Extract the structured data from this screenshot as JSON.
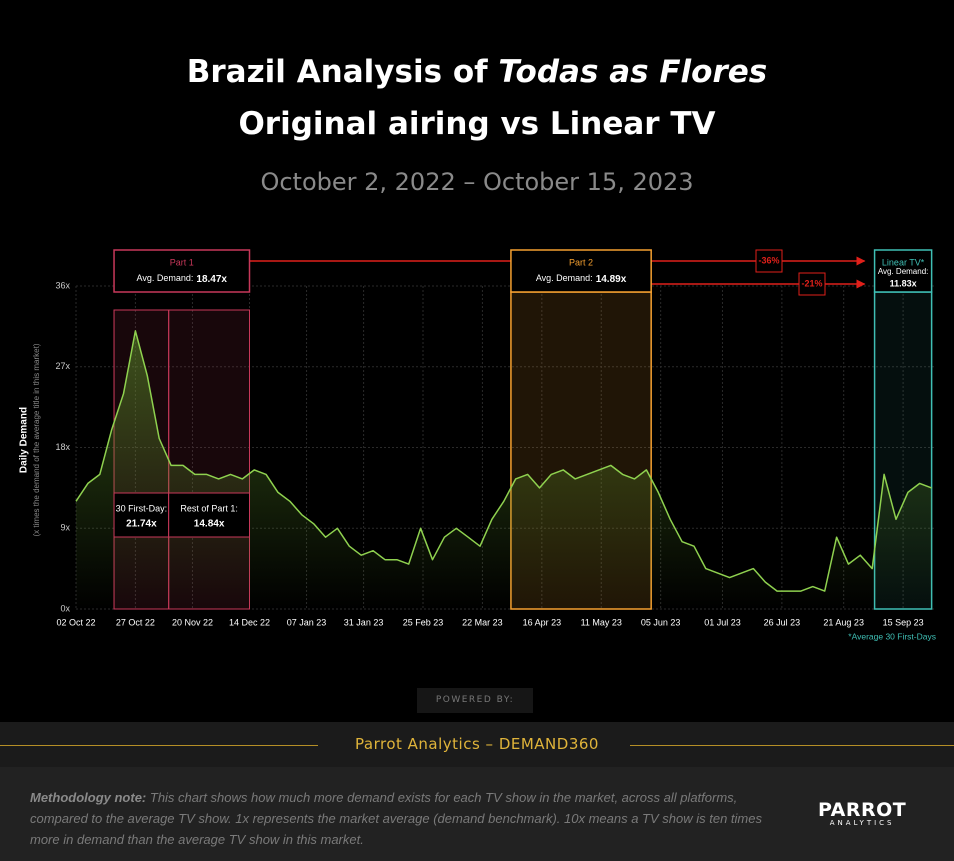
{
  "header": {
    "title_prefix": "Brazil Analysis of ",
    "title_italic": "Todas as Flores",
    "title_line2": "Original airing vs Linear TV",
    "subtitle": "October 2, 2022 – October 15, 2023"
  },
  "chart_data": {
    "type": "line",
    "ylabel": "Daily Demand",
    "ylabel_sub": "(x times the demand of the average title in this market)",
    "color": "#8fd14f",
    "x": [
      "2022-10-02",
      "2022-10-07",
      "2022-10-12",
      "2022-10-17",
      "2022-10-22",
      "2022-10-27",
      "2022-11-01",
      "2022-11-06",
      "2022-11-11",
      "2022-11-16",
      "2022-11-21",
      "2022-11-26",
      "2022-12-01",
      "2022-12-06",
      "2022-12-11",
      "2022-12-16",
      "2022-12-21",
      "2022-12-26",
      "2022-12-31",
      "2023-01-05",
      "2023-01-10",
      "2023-01-15",
      "2023-01-20",
      "2023-01-25",
      "2023-01-30",
      "2023-02-04",
      "2023-02-09",
      "2023-02-14",
      "2023-02-19",
      "2023-02-24",
      "2023-03-01",
      "2023-03-06",
      "2023-03-11",
      "2023-03-16",
      "2023-03-21",
      "2023-03-26",
      "2023-03-31",
      "2023-04-05",
      "2023-04-10",
      "2023-04-15",
      "2023-04-20",
      "2023-04-25",
      "2023-04-30",
      "2023-05-05",
      "2023-05-10",
      "2023-05-15",
      "2023-05-20",
      "2023-05-25",
      "2023-05-30",
      "2023-06-04",
      "2023-06-09",
      "2023-06-14",
      "2023-06-19",
      "2023-06-24",
      "2023-06-29",
      "2023-07-04",
      "2023-07-09",
      "2023-07-14",
      "2023-07-19",
      "2023-07-24",
      "2023-07-29",
      "2023-08-03",
      "2023-08-08",
      "2023-08-13",
      "2023-08-18",
      "2023-08-23",
      "2023-08-28",
      "2023-09-02",
      "2023-09-07",
      "2023-09-12",
      "2023-09-17",
      "2023-09-22",
      "2023-09-27"
    ],
    "values": [
      12,
      14,
      15,
      20,
      24,
      31,
      26,
      19,
      16,
      16,
      15,
      15,
      14.5,
      15,
      14.5,
      15.5,
      15,
      13,
      12,
      10.5,
      9.5,
      8,
      9,
      7,
      6,
      6.5,
      5.5,
      5.5,
      5,
      9,
      5.5,
      8,
      9,
      8,
      7,
      10,
      12,
      14.5,
      15,
      13.5,
      15,
      15.5,
      14.5,
      15,
      15.5,
      16,
      15,
      14.5,
      15.5,
      13,
      10,
      7.5,
      7,
      4.5,
      4,
      3.5,
      4,
      4.5,
      3,
      2,
      2,
      2,
      2.5,
      2,
      8,
      5,
      6,
      4.5,
      15,
      10,
      13,
      14,
      13.5
    ],
    "xlim": [
      "2022-10-02",
      "2023-09-28"
    ],
    "xticks": [
      {
        "value": "2022-10-02",
        "label": "02 Oct 22"
      },
      {
        "value": "2022-10-27",
        "label": "27 Oct 22"
      },
      {
        "value": "2022-11-20",
        "label": "20 Nov 22"
      },
      {
        "value": "2022-12-14",
        "label": "14 Dec 22"
      },
      {
        "value": "2023-01-07",
        "label": "07 Jan 23"
      },
      {
        "value": "2023-01-31",
        "label": "31 Jan 23"
      },
      {
        "value": "2023-02-25",
        "label": "25 Feb 23"
      },
      {
        "value": "2023-03-22",
        "label": "22 Mar 23"
      },
      {
        "value": "2023-04-16",
        "label": "16 Apr 23"
      },
      {
        "value": "2023-05-11",
        "label": "11 May 23"
      },
      {
        "value": "2023-06-05",
        "label": "05 Jun 23"
      },
      {
        "value": "2023-07-01",
        "label": "01 Jul 23"
      },
      {
        "value": "2023-07-26",
        "label": "26 Jul 23"
      },
      {
        "value": "2023-08-21",
        "label": "21 Aug 23"
      },
      {
        "value": "2023-09-15",
        "label": "15 Sep 23"
      }
    ],
    "ylim": [
      0,
      36
    ],
    "yticks": [
      {
        "value": 0,
        "label": "0x"
      },
      {
        "value": 9,
        "label": "9x"
      },
      {
        "value": 18,
        "label": "18x"
      },
      {
        "value": 27,
        "label": "27x"
      },
      {
        "value": 36,
        "label": "36x"
      }
    ],
    "grid": true,
    "annotations": {
      "regions": [
        {
          "label": "Part 1",
          "avg_label": "Avg. Demand:",
          "avg": "18.47x",
          "start": "2022-10-18",
          "end": "2022-12-14",
          "color": "#c8385a"
        },
        {
          "label": "Part 2",
          "avg_label": "Avg. Demand:",
          "avg": "14.89x",
          "start": "2023-04-03",
          "end": "2023-06-01",
          "color": "#f5a030"
        },
        {
          "label": "Linear TV*",
          "avg_label": "Avg. Demand:",
          "avg": "11.83x",
          "start": "2023-09-03",
          "end": "2023-09-27",
          "color": "#3fbfb5"
        }
      ],
      "subregions": [
        {
          "label": "30 First-Day:",
          "value": "21.74x",
          "start": "2022-10-18",
          "end": "2022-11-10"
        },
        {
          "label": "Rest of Part 1:",
          "value": "14.84x",
          "start": "2022-11-10",
          "end": "2022-12-14"
        }
      ],
      "arrows": [
        {
          "label": "-36%"
        },
        {
          "label": "-21%"
        }
      ],
      "footnote": "*Average 30 First-Days"
    }
  },
  "powered_by": "POWERED BY:",
  "footer": {
    "brand": "Parrot Analytics – DEMAND360",
    "note_label": "Methodology note:",
    "note_text": " This chart shows how much more demand exists for each TV show in the market, across all platforms, compared to the average TV show. 1x represents the market average (demand benchmark). 10x means a TV show is ten times more in demand than the average TV show in this market.",
    "logo": "PARROT",
    "logo_sub": "ANALYTICS"
  }
}
